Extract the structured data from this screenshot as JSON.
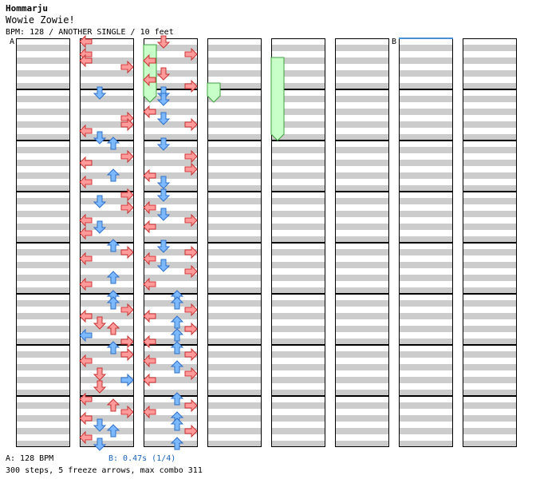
{
  "header": {
    "artist": "Hommarju",
    "title": "Wowie Zowie!",
    "meta": "BPM: 128 / ANOTHER SINGLE / 10 feet"
  },
  "footer": {
    "bpm": "A: 128 BPM",
    "speed": "B: 0.47s (1/4)",
    "stats": "300 steps, 5 freeze arrows, max combo 311"
  },
  "markers": {
    "a": "A",
    "b": "B"
  },
  "colors": {
    "bg": "#ffffff",
    "stripe": "#cccccc",
    "border": "#000000",
    "red": "#ff9b9b",
    "red_edge": "#c83232",
    "blue": "#7db9ff",
    "blue_edge": "#2f6fc8",
    "pink": "#ffb4ff",
    "pink_edge": "#b048b0",
    "green": "#5ef05e",
    "green_edge": "#1f961f",
    "freeze": "#c8ffc8",
    "freeze_edge": "#40a040",
    "speed_marker": "#4a90d9"
  },
  "chart_data": {
    "type": "step-chart",
    "columns": 8,
    "measures_per_column": 8,
    "lanes": [
      "left",
      "down",
      "up",
      "right"
    ],
    "total_steps": 300,
    "freeze_arrows": 5,
    "max_combo": 311,
    "bpm": 128,
    "notes": [
      [
        1,
        0,
        0,
        0,
        "L",
        "red"
      ],
      [
        1,
        0,
        2,
        0,
        "L",
        "red"
      ],
      [
        1,
        0,
        3,
        0,
        "L",
        "red"
      ],
      [
        1,
        0,
        4,
        0,
        "R",
        "red"
      ],
      [
        1,
        1,
        0,
        0,
        "D",
        "blue"
      ],
      [
        1,
        1,
        4,
        0,
        "R",
        "red"
      ],
      [
        1,
        1,
        5,
        0,
        "R",
        "red"
      ],
      [
        1,
        1,
        6,
        0,
        "L",
        "red"
      ],
      [
        1,
        1,
        7,
        0,
        "D",
        "blue"
      ],
      [
        1,
        2,
        0,
        0,
        "U",
        "blue"
      ],
      [
        1,
        2,
        2,
        0,
        "R",
        "red"
      ],
      [
        1,
        2,
        3,
        0,
        "L",
        "red"
      ],
      [
        1,
        2,
        5,
        0,
        "U",
        "blue"
      ],
      [
        1,
        2,
        6,
        0,
        "L",
        "red"
      ],
      [
        1,
        3,
        0,
        0,
        "R",
        "red"
      ],
      [
        1,
        3,
        1,
        0,
        "D",
        "blue"
      ],
      [
        1,
        3,
        2,
        0,
        "R",
        "red"
      ],
      [
        1,
        3,
        4,
        0,
        "L",
        "red"
      ],
      [
        1,
        3,
        5,
        0,
        "D",
        "blue"
      ],
      [
        1,
        3,
        6,
        0,
        "L",
        "red"
      ],
      [
        1,
        4,
        0,
        0,
        "U",
        "blue"
      ],
      [
        1,
        4,
        1,
        0,
        "R",
        "red"
      ],
      [
        1,
        4,
        2,
        0,
        "L",
        "red"
      ],
      [
        1,
        4,
        5,
        0,
        "U",
        "blue"
      ],
      [
        1,
        4,
        6,
        0,
        "L",
        "red"
      ],
      [
        1,
        5,
        0,
        0,
        "U",
        "blue"
      ],
      [
        1,
        5,
        1,
        0,
        "U",
        "blue"
      ],
      [
        1,
        5,
        2,
        0,
        "R",
        "red"
      ],
      [
        1,
        5,
        3,
        0,
        "L",
        "red"
      ],
      [
        1,
        5,
        4,
        0,
        "D",
        "red"
      ],
      [
        1,
        5,
        5,
        0,
        "U",
        "red"
      ],
      [
        1,
        5,
        6,
        0,
        "L",
        "blue"
      ],
      [
        1,
        5,
        7,
        0,
        "R",
        "red"
      ],
      [
        1,
        6,
        0,
        0,
        "U",
        "blue"
      ],
      [
        1,
        6,
        1,
        0,
        "R",
        "red"
      ],
      [
        1,
        6,
        2,
        0,
        "L",
        "red"
      ],
      [
        1,
        6,
        4,
        0,
        "D",
        "red"
      ],
      [
        1,
        6,
        5,
        0,
        "R",
        "blue"
      ],
      [
        1,
        6,
        6,
        0,
        "D",
        "red"
      ],
      [
        1,
        7,
        0,
        0,
        "L",
        "red"
      ],
      [
        1,
        7,
        1,
        0,
        "U",
        "red"
      ],
      [
        1,
        7,
        2,
        0,
        "R",
        "red"
      ],
      [
        1,
        7,
        3,
        0,
        "L",
        "red"
      ],
      [
        1,
        7,
        4,
        0,
        "D",
        "blue"
      ],
      [
        1,
        7,
        5,
        0,
        "U",
        "blue"
      ],
      [
        1,
        7,
        6,
        0,
        "L",
        "red"
      ],
      [
        1,
        7,
        7,
        0,
        "D",
        "blue"
      ],
      [
        2,
        0,
        0,
        0,
        "D",
        "red"
      ],
      [
        2,
        0,
        2,
        0,
        "R",
        "red"
      ],
      [
        2,
        0,
        3,
        0,
        "L",
        "red"
      ],
      [
        2,
        0,
        5,
        0,
        "D",
        "red"
      ],
      [
        2,
        0,
        6,
        0,
        "L",
        "red"
      ],
      [
        2,
        0,
        7,
        0,
        "R",
        "red"
      ],
      [
        2,
        1,
        0,
        0,
        "D",
        "blue"
      ],
      [
        2,
        1,
        1,
        0,
        "D",
        "blue"
      ],
      [
        2,
        1,
        3,
        0,
        "L",
        "red"
      ],
      [
        2,
        1,
        4,
        0,
        "D",
        "blue"
      ],
      [
        2,
        1,
        5,
        0,
        "R",
        "red"
      ],
      [
        2,
        2,
        0,
        0,
        "D",
        "blue"
      ],
      [
        2,
        2,
        2,
        0,
        "R",
        "red"
      ],
      [
        2,
        2,
        4,
        0,
        "R",
        "red"
      ],
      [
        2,
        2,
        5,
        0,
        "L",
        "red"
      ],
      [
        2,
        2,
        6,
        0,
        "D",
        "blue"
      ],
      [
        2,
        3,
        0,
        0,
        "D",
        "blue"
      ],
      [
        2,
        3,
        2,
        0,
        "L",
        "red"
      ],
      [
        2,
        3,
        3,
        0,
        "D",
        "blue"
      ],
      [
        2,
        3,
        4,
        0,
        "R",
        "red"
      ],
      [
        2,
        3,
        5,
        0,
        "L",
        "red"
      ],
      [
        2,
        4,
        0,
        0,
        "D",
        "blue"
      ],
      [
        2,
        4,
        1,
        0,
        "R",
        "red"
      ],
      [
        2,
        4,
        2,
        0,
        "L",
        "red"
      ],
      [
        2,
        4,
        3,
        0,
        "D",
        "blue"
      ],
      [
        2,
        4,
        4,
        0,
        "R",
        "red"
      ],
      [
        2,
        4,
        6,
        0,
        "L",
        "red"
      ],
      [
        2,
        5,
        0,
        0,
        "U",
        "blue"
      ],
      [
        2,
        5,
        1,
        0,
        "U",
        "blue"
      ],
      [
        2,
        5,
        2,
        0,
        "R",
        "red"
      ],
      [
        2,
        5,
        3,
        0,
        "L",
        "red"
      ],
      [
        2,
        5,
        4,
        0,
        "U",
        "blue"
      ],
      [
        2,
        5,
        5,
        0,
        "R",
        "red"
      ],
      [
        2,
        5,
        6,
        0,
        "U",
        "blue"
      ],
      [
        2,
        5,
        7,
        0,
        "L",
        "red"
      ],
      [
        2,
        6,
        0,
        0,
        "U",
        "blue"
      ],
      [
        2,
        6,
        1,
        0,
        "R",
        "red"
      ],
      [
        2,
        6,
        2,
        0,
        "L",
        "red"
      ],
      [
        2,
        6,
        3,
        0,
        "U",
        "blue"
      ],
      [
        2,
        6,
        4,
        0,
        "R",
        "red"
      ],
      [
        2,
        6,
        5,
        0,
        "L",
        "red"
      ],
      [
        2,
        7,
        0,
        0,
        "U",
        "blue"
      ],
      [
        2,
        7,
        1,
        0,
        "R",
        "red"
      ],
      [
        2,
        7,
        2,
        0,
        "L",
        "red"
      ],
      [
        2,
        7,
        3,
        0,
        "U",
        "blue"
      ],
      [
        2,
        7,
        4,
        0,
        "U",
        "blue"
      ],
      [
        2,
        7,
        5,
        0,
        "R",
        "red"
      ],
      [
        2,
        7,
        7,
        0,
        "U",
        "blue"
      ]
    ],
    "freezes": [
      [
        2,
        0,
        0,
        0,
        0,
        4
      ],
      [
        3,
        0,
        0,
        3,
        0,
        4
      ],
      [
        4,
        0,
        0,
        1,
        0,
        7
      ]
    ]
  }
}
